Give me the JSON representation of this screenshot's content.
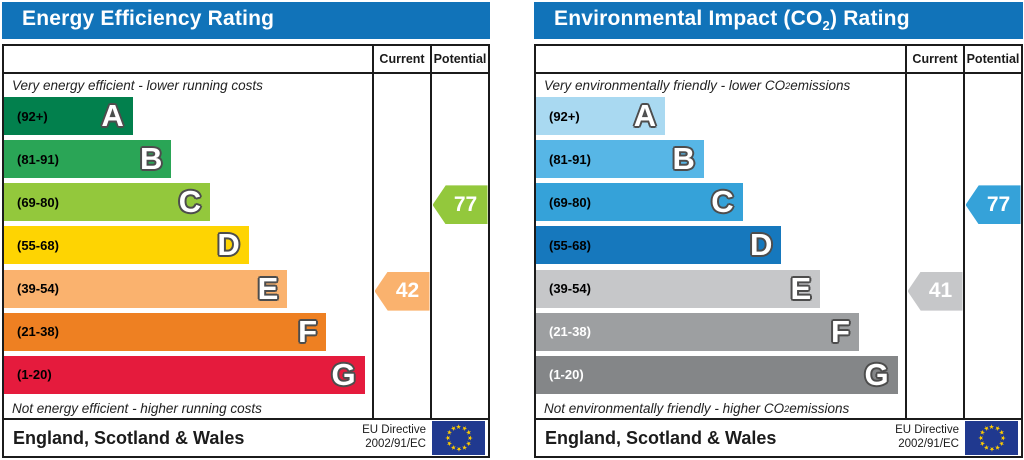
{
  "chart_data": [
    {
      "type": "bar",
      "title": "Energy Efficiency Rating",
      "categories": [
        "A (92+)",
        "B (81-91)",
        "C (69-80)",
        "D (55-68)",
        "E (39-54)",
        "F (21-38)",
        "G (1-20)"
      ],
      "current": {
        "value": 42,
        "band": "E"
      },
      "potential": {
        "value": 77,
        "band": "C"
      },
      "top_note": "Very energy efficient - lower running costs",
      "bottom_note": "Not energy efficient - higher running costs",
      "footer": "England, Scotland & Wales",
      "directive": "EU Directive 2002/91/EC"
    },
    {
      "type": "bar",
      "title": "Environmental Impact (CO2) Rating",
      "categories": [
        "A (92+)",
        "B (81-91)",
        "C (69-80)",
        "D (55-68)",
        "E (39-54)",
        "F (21-38)",
        "G (1-20)"
      ],
      "current": {
        "value": 41,
        "band": "E"
      },
      "potential": {
        "value": 77,
        "band": "C"
      },
      "top_note": "Very environmentally friendly - lower CO2 emissions",
      "bottom_note": "Not environmentally friendly - higher CO2 emissions",
      "footer": "England, Scotland & Wales",
      "directive": "EU Directive 2002/91/EC"
    }
  ],
  "panels": [
    {
      "key": "energy-efficiency",
      "header": {
        "pre": "Energy Efficiency Rating",
        "sub": "",
        "post": ""
      },
      "header_bg": "#1173b9",
      "col_current": "Current",
      "col_potential": "Potential",
      "top_note": {
        "pre": "Very energy efficient - lower running costs",
        "sub": "",
        "post": ""
      },
      "bottom_note": {
        "pre": "Not energy efficient - higher running costs",
        "sub": "",
        "post": ""
      },
      "bands": [
        {
          "range": "(92+)",
          "letter": "A",
          "color": "#02804d",
          "width_pct": 35,
          "text": "#000000"
        },
        {
          "range": "(81-91)",
          "letter": "B",
          "color": "#2aa556",
          "width_pct": 45.5,
          "text": "#000000"
        },
        {
          "range": "(69-80)",
          "letter": "C",
          "color": "#93c83c",
          "width_pct": 56,
          "text": "#000000"
        },
        {
          "range": "(55-68)",
          "letter": "D",
          "color": "#fed402",
          "width_pct": 66.5,
          "text": "#000000"
        },
        {
          "range": "(39-54)",
          "letter": "E",
          "color": "#fab26e",
          "width_pct": 77,
          "text": "#000000"
        },
        {
          "range": "(21-38)",
          "letter": "F",
          "color": "#ee8022",
          "width_pct": 87.5,
          "text": "#000000"
        },
        {
          "range": "(1-20)",
          "letter": "G",
          "color": "#e51b3d",
          "width_pct": 98,
          "text": "#000000"
        }
      ],
      "current": {
        "value": "42",
        "color": "#fab26e",
        "band_index": 4
      },
      "potential": {
        "value": "77",
        "color": "#93c83c",
        "band_index": 2
      },
      "footer_region": "England, Scotland & Wales",
      "directive": [
        "EU Directive",
        "2002/91/EC"
      ]
    },
    {
      "key": "environmental-impact",
      "header": {
        "pre": "Environmental Impact (CO",
        "sub": "2",
        "post": ") Rating"
      },
      "header_bg": "#1173b9",
      "col_current": "Current",
      "col_potential": "Potential",
      "top_note": {
        "pre": "Very environmentally friendly - lower CO",
        "sub": "2",
        "post": " emissions"
      },
      "bottom_note": {
        "pre": "Not environmentally friendly - higher CO",
        "sub": "2",
        "post": " emissions"
      },
      "bands": [
        {
          "range": "(92+)",
          "letter": "A",
          "color": "#a9d9f1",
          "width_pct": 35,
          "text": "#000000"
        },
        {
          "range": "(81-91)",
          "letter": "B",
          "color": "#57b6e6",
          "width_pct": 45.5,
          "text": "#000000"
        },
        {
          "range": "(69-80)",
          "letter": "C",
          "color": "#35a2d9",
          "width_pct": 56,
          "text": "#000000"
        },
        {
          "range": "(55-68)",
          "letter": "D",
          "color": "#1678bd",
          "width_pct": 66.5,
          "text": "#000000"
        },
        {
          "range": "(39-54)",
          "letter": "E",
          "color": "#c6c7c9",
          "width_pct": 77,
          "text": "#000000"
        },
        {
          "range": "(21-38)",
          "letter": "F",
          "color": "#9d9fa1",
          "width_pct": 87.5,
          "text": "#ffffff"
        },
        {
          "range": "(1-20)",
          "letter": "G",
          "color": "#848688",
          "width_pct": 98,
          "text": "#ffffff"
        }
      ],
      "current": {
        "value": "41",
        "color": "#c6c7c9",
        "band_index": 4
      },
      "potential": {
        "value": "77",
        "color": "#35a2d9",
        "band_index": 2
      },
      "footer_region": "England, Scotland & Wales",
      "directive": [
        "EU Directive",
        "2002/91/EC"
      ]
    }
  ],
  "flag": {
    "bg": "#20398f",
    "star_color": "#ffcc00",
    "star_count": 12
  }
}
